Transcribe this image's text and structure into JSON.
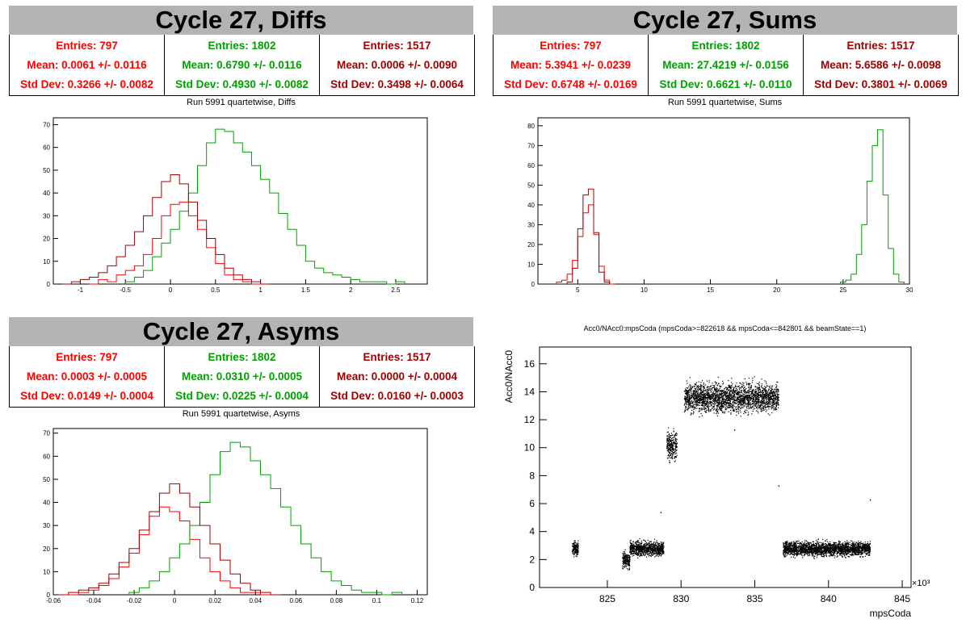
{
  "colors": {
    "series_0": "#ff0000",
    "series_1": "#00a000",
    "series_2": "#a00000",
    "title_bg": "#b3b3b3"
  },
  "diffs": {
    "title": "Cycle 27, Diffs",
    "caption": "Run 5991 quartetwise, Diffs",
    "stats": [
      {
        "entries": "Entries: 797",
        "mean": "Mean: 0.0061 +/- 0.0116",
        "std": "Std Dev: 0.3266 +/- 0.0082"
      },
      {
        "entries": "Entries: 1802",
        "mean": "Mean: 0.6790 +/- 0.0116",
        "std": "Std Dev: 0.4930 +/- 0.0082"
      },
      {
        "entries": "Entries: 1517",
        "mean": "Mean: 0.0006 +/- 0.0090",
        "std": "Std Dev: 0.3498 +/- 0.0064"
      }
    ]
  },
  "sums": {
    "title": "Cycle 27, Sums",
    "caption": "Run 5991 quartetwise, Sums",
    "stats": [
      {
        "entries": "Entries: 797",
        "mean": "Mean: 5.3941 +/- 0.0239",
        "std": "Std Dev: 0.6748 +/- 0.0169"
      },
      {
        "entries": "Entries: 1802",
        "mean": "Mean: 27.4219 +/- 0.0156",
        "std": "Std Dev: 0.6621 +/- 0.0110"
      },
      {
        "entries": "Entries: 1517",
        "mean": "Mean: 5.6586 +/- 0.0098",
        "std": "Std Dev: 0.3801 +/- 0.0069"
      }
    ]
  },
  "asyms": {
    "title": "Cycle 27, Asyms",
    "caption": "Run 5991 quartetwise, Asyms",
    "stats": [
      {
        "entries": "Entries: 797",
        "mean": "Mean: 0.0003 +/- 0.0005",
        "std": "Std Dev: 0.0149 +/- 0.0004"
      },
      {
        "entries": "Entries: 1802",
        "mean": "Mean: 0.0310 +/- 0.0005",
        "std": "Std Dev: 0.0225 +/- 0.0004"
      },
      {
        "entries": "Entries: 1517",
        "mean": "Mean: 0.0000 +/- 0.0004",
        "std": "Std Dev: 0.0160 +/- 0.0003"
      }
    ]
  },
  "scatter_title": "Acc0/NAcc0:mpsCoda (mpsCoda>=822618 && mpsCoda<=842801 && beamState==1)",
  "chart_data": [
    {
      "id": "diffs",
      "type": "histogram",
      "xlim": [
        -1.3,
        2.85
      ],
      "ylim": [
        0,
        73
      ],
      "xticks": [
        -1,
        -0.5,
        0,
        0.5,
        1,
        1.5,
        2,
        2.5
      ],
      "xtick_labels": [
        "-1",
        "-0.5",
        "0",
        "0.5",
        "1",
        "1.5",
        "2",
        "2.5"
      ],
      "yticks": [
        0,
        10,
        20,
        30,
        40,
        50,
        60,
        70
      ],
      "ytick_labels": [
        "0",
        "10",
        "20",
        "30",
        "40",
        "50",
        "60",
        "70"
      ],
      "series": [
        {
          "color": "series_0",
          "x": [
            -0.85,
            -0.75,
            -0.65,
            -0.55,
            -0.45,
            -0.35,
            -0.25,
            -0.15,
            -0.05,
            0.05,
            0.15,
            0.25,
            0.35,
            0.45,
            0.55,
            0.65,
            0.75,
            0.85,
            0.95
          ],
          "values": [
            0,
            2,
            1,
            4,
            6,
            8,
            13,
            20,
            30,
            35,
            36,
            30,
            24,
            16,
            9,
            4,
            2,
            1,
            0
          ]
        },
        {
          "color": "series_1",
          "x": [
            -0.45,
            -0.35,
            -0.25,
            -0.15,
            -0.05,
            0.05,
            0.15,
            0.25,
            0.35,
            0.45,
            0.55,
            0.65,
            0.75,
            0.85,
            0.95,
            1.05,
            1.15,
            1.25,
            1.35,
            1.45,
            1.55,
            1.65,
            1.75,
            1.85,
            1.95,
            2.05,
            2.15,
            2.25,
            2.35,
            2.45,
            2.55
          ],
          "values": [
            1,
            3,
            6,
            12,
            18,
            24,
            32,
            40,
            52,
            62,
            68,
            67,
            62,
            58,
            52,
            46,
            40,
            31,
            24,
            17,
            10,
            7,
            5,
            4,
            3,
            2,
            1,
            1,
            1,
            0,
            1
          ]
        },
        {
          "color": "series_2",
          "x": [
            -1.15,
            -1.05,
            -0.95,
            -0.85,
            -0.75,
            -0.65,
            -0.55,
            -0.45,
            -0.35,
            -0.25,
            -0.15,
            -0.05,
            0.05,
            0.15,
            0.25,
            0.35,
            0.45,
            0.55,
            0.65,
            0.75,
            0.85,
            0.95,
            1.05
          ],
          "values": [
            0,
            1,
            2,
            3,
            5,
            8,
            12,
            17,
            23,
            30,
            38,
            45,
            48,
            44,
            36,
            28,
            20,
            13,
            7,
            4,
            2,
            1,
            0
          ]
        }
      ]
    },
    {
      "id": "sums",
      "type": "histogram",
      "xlim": [
        2,
        30
      ],
      "ylim": [
        0,
        84
      ],
      "xticks": [
        5,
        10,
        15,
        20,
        25,
        30
      ],
      "xtick_labels": [
        "5",
        "10",
        "15",
        "20",
        "25",
        "30"
      ],
      "yticks": [
        0,
        10,
        20,
        30,
        40,
        50,
        60,
        70,
        80
      ],
      "ytick_labels": [
        "0",
        "10",
        "20",
        "30",
        "40",
        "50",
        "60",
        "70",
        "80"
      ],
      "series": [
        {
          "color": "series_0",
          "x": [
            3.6,
            4.0,
            4.4,
            4.8,
            5.2,
            5.6,
            6.0,
            6.4,
            6.8,
            7.2,
            7.6
          ],
          "values": [
            1,
            2,
            5,
            12,
            24,
            36,
            40,
            25,
            9,
            2,
            0
          ]
        },
        {
          "color": "series_1",
          "x": [
            25.0,
            25.4,
            25.8,
            26.2,
            26.6,
            27.0,
            27.4,
            27.8,
            28.2,
            28.6,
            29.0,
            29.4
          ],
          "values": [
            1,
            2,
            5,
            15,
            30,
            52,
            70,
            78,
            45,
            18,
            5,
            1
          ]
        },
        {
          "color": "series_2",
          "x": [
            4.4,
            4.8,
            5.2,
            5.6,
            6.0,
            6.4,
            6.8,
            7.2
          ],
          "values": [
            1,
            8,
            28,
            45,
            48,
            26,
            6,
            1
          ]
        }
      ]
    },
    {
      "id": "asyms",
      "type": "histogram",
      "xlim": [
        -0.06,
        0.125
      ],
      "ylim": [
        0,
        72
      ],
      "xticks": [
        -0.06,
        -0.04,
        -0.02,
        0,
        0.02,
        0.04,
        0.06,
        0.08,
        0.1,
        0.12
      ],
      "xtick_labels": [
        "-0.06",
        "-0.04",
        "-0.02",
        "0",
        "0.02",
        "0.04",
        "0.06",
        "0.08",
        "0.1",
        "0.12"
      ],
      "yticks": [
        0,
        10,
        20,
        30,
        40,
        50,
        60,
        70
      ],
      "ytick_labels": [
        "0",
        "10",
        "20",
        "30",
        "40",
        "50",
        "60",
        "70"
      ],
      "series": [
        {
          "color": "series_0",
          "x": [
            -0.05,
            -0.045,
            -0.04,
            -0.035,
            -0.03,
            -0.025,
            -0.02,
            -0.015,
            -0.01,
            -0.005,
            0,
            0.005,
            0.01,
            0.015,
            0.02,
            0.025,
            0.03,
            0.035,
            0.04,
            0.045
          ],
          "values": [
            0,
            1,
            2,
            4,
            7,
            12,
            18,
            26,
            34,
            38,
            36,
            32,
            24,
            16,
            10,
            6,
            3,
            1,
            1,
            0
          ]
        },
        {
          "color": "series_1",
          "x": [
            -0.02,
            -0.015,
            -0.01,
            -0.005,
            0,
            0.005,
            0.01,
            0.015,
            0.02,
            0.025,
            0.03,
            0.035,
            0.04,
            0.045,
            0.05,
            0.055,
            0.06,
            0.065,
            0.07,
            0.075,
            0.08,
            0.085,
            0.09,
            0.095,
            0.1,
            0.105,
            0.11
          ],
          "values": [
            1,
            3,
            6,
            10,
            16,
            22,
            30,
            40,
            52,
            62,
            66,
            64,
            58,
            52,
            46,
            38,
            30,
            22,
            16,
            10,
            6,
            4,
            2,
            1,
            1,
            0,
            1
          ]
        },
        {
          "color": "series_2",
          "x": [
            -0.055,
            -0.05,
            -0.045,
            -0.04,
            -0.035,
            -0.03,
            -0.025,
            -0.02,
            -0.015,
            -0.01,
            -0.005,
            0,
            0.005,
            0.01,
            0.015,
            0.02,
            0.025,
            0.03,
            0.035,
            0.04,
            0.045,
            0.05
          ],
          "values": [
            0,
            1,
            2,
            3,
            5,
            9,
            14,
            20,
            28,
            36,
            44,
            48,
            44,
            38,
            30,
            22,
            15,
            9,
            5,
            2,
            1,
            0
          ]
        }
      ]
    },
    {
      "id": "scatter",
      "type": "scatter",
      "xlabel": "mpsCoda",
      "ylabel": "Acc0/NAcc0",
      "x_multiplier_label": "×10³",
      "xlim": [
        820.4,
        845.6
      ],
      "ylim": [
        0,
        17.2
      ],
      "xticks": [
        825,
        830,
        835,
        840,
        845
      ],
      "xtick_labels": [
        "825",
        "830",
        "835",
        "840",
        "845"
      ],
      "yticks": [
        0,
        2,
        4,
        6,
        8,
        10,
        12,
        14,
        16
      ],
      "ytick_labels": [
        "0",
        "2",
        "4",
        "6",
        "8",
        "10",
        "12",
        "14",
        "16"
      ],
      "clusters": [
        {
          "x_range": [
            822.6,
            823.0
          ],
          "y_center": 2.8,
          "y_spread": 0.45
        },
        {
          "x_range": [
            826.0,
            826.5
          ],
          "y_center": 2.0,
          "y_spread": 0.5
        },
        {
          "x_range": [
            826.5,
            828.8
          ],
          "y_center": 2.8,
          "y_spread": 0.45
        },
        {
          "x_range": [
            829.0,
            829.7
          ],
          "y_center": 10.2,
          "y_spread": 0.9
        },
        {
          "x_range": [
            830.2,
            836.6
          ],
          "y_center": 13.6,
          "y_spread": 0.9
        },
        {
          "x_range": [
            836.9,
            842.8
          ],
          "y_center": 2.8,
          "y_spread": 0.45
        }
      ],
      "outliers": [
        {
          "x": 836.6,
          "y": 7.3
        },
        {
          "x": 842.8,
          "y": 6.3
        },
        {
          "x": 828.6,
          "y": 5.4
        },
        {
          "x": 833.6,
          "y": 11.3
        }
      ]
    }
  ]
}
